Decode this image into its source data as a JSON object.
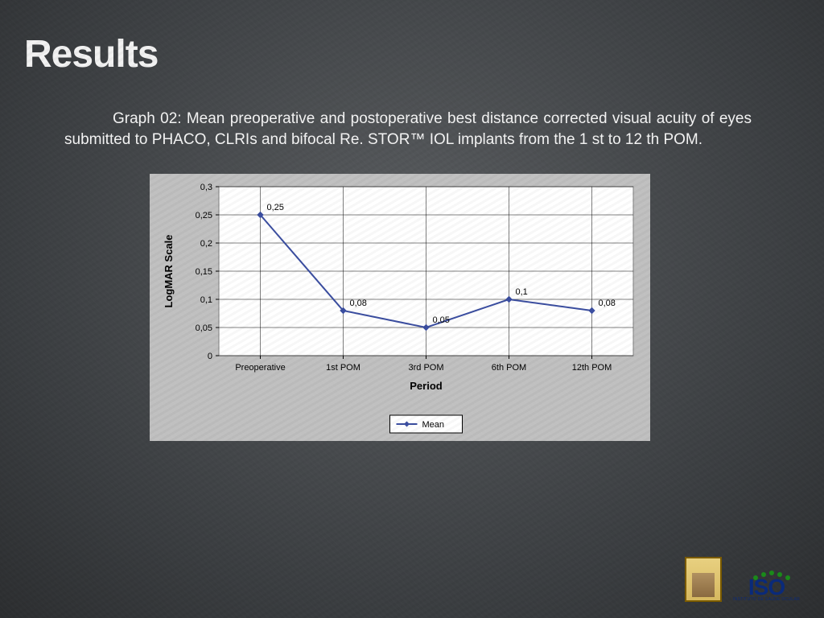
{
  "title": "Results",
  "caption": "Graph 02: Mean preoperative and postoperative best distance corrected visual acuity of eyes submitted to PHACO, CLRIs and bifocal Re. STOR™ IOL implants from the 1 st to 12 th POM.",
  "chart": {
    "type": "line",
    "background_color": "#c0c0c0",
    "plot_background_color": "#ffffff",
    "border_color": "#808080",
    "grid_color": "#000000",
    "grid_on": true,
    "axis": {
      "y_label": "LogMAR Scale",
      "y_label_fontsize": 13,
      "y_label_fontweight": "bold",
      "x_label": "Period",
      "x_label_fontsize": 13,
      "x_label_fontweight": "bold",
      "ylim": [
        0,
        0.3
      ],
      "ytick_step": 0.05,
      "ytick_labels": [
        "0",
        "0,05",
        "0,1",
        "0,15",
        "0,2",
        "0,25",
        "0,3"
      ],
      "tick_fontsize": 11,
      "tick_color": "#000000"
    },
    "categories": [
      "Preoperative",
      "1st POM",
      "3rd POM",
      "6th POM",
      "12th POM"
    ],
    "series": [
      {
        "name": "Mean",
        "values": [
          0.25,
          0.08,
          0.05,
          0.1,
          0.08
        ],
        "value_labels": [
          "0,25",
          "0,08",
          "0,05",
          "0,1",
          "0,08"
        ],
        "line_color": "#3a4da0",
        "line_width": 2,
        "marker": "diamond",
        "marker_color": "#3a4da0",
        "marker_size": 7,
        "data_label_fontsize": 11,
        "data_label_color": "#000000"
      }
    ],
    "legend": {
      "position": "bottom",
      "items": [
        "Mean"
      ],
      "fontsize": 11,
      "border_color": "#000000",
      "background_color": "#ffffff"
    }
  },
  "logos": {
    "left_alt": "City program logo",
    "iso_text": "ISO",
    "iso_sub": "INSTITUTO DE SAÚDE OCULAR"
  }
}
